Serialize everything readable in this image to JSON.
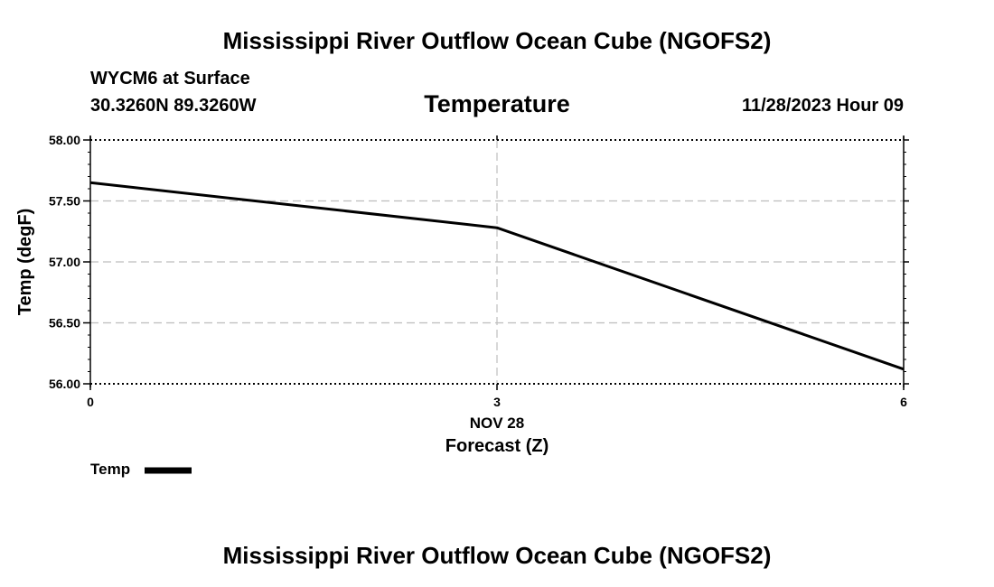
{
  "header": {
    "title": "Mississippi River Outflow Ocean Cube (NGOFS2)",
    "station": "WYCM6 at Surface",
    "coords": "30.3260N  89.3260W",
    "panel_title": "Temperature",
    "datetime": "11/28/2023 Hour 09"
  },
  "footer": {
    "title": "Mississippi River Outflow Ocean Cube (NGOFS2)"
  },
  "chart_data": {
    "type": "line",
    "title": "Temperature",
    "xlabel": "Forecast (Z)",
    "ylabel": "Temp (degF)",
    "x_date_label": "NOV 28",
    "xlim": [
      0,
      6
    ],
    "ylim": [
      56.0,
      58.0
    ],
    "x_ticks": [
      0,
      3,
      6
    ],
    "x_tick_labels": [
      "0",
      "3",
      "6"
    ],
    "y_ticks": [
      56.0,
      56.5,
      57.0,
      57.5,
      58.0
    ],
    "y_tick_labels": [
      "56.00",
      "56.50",
      "57.00",
      "57.50",
      "58.00"
    ],
    "grid": true,
    "legend_position": "bottom-left",
    "series": [
      {
        "name": "Temp",
        "color": "#000000",
        "x": [
          0,
          3,
          6
        ],
        "y": [
          57.65,
          57.28,
          56.12
        ]
      }
    ]
  }
}
